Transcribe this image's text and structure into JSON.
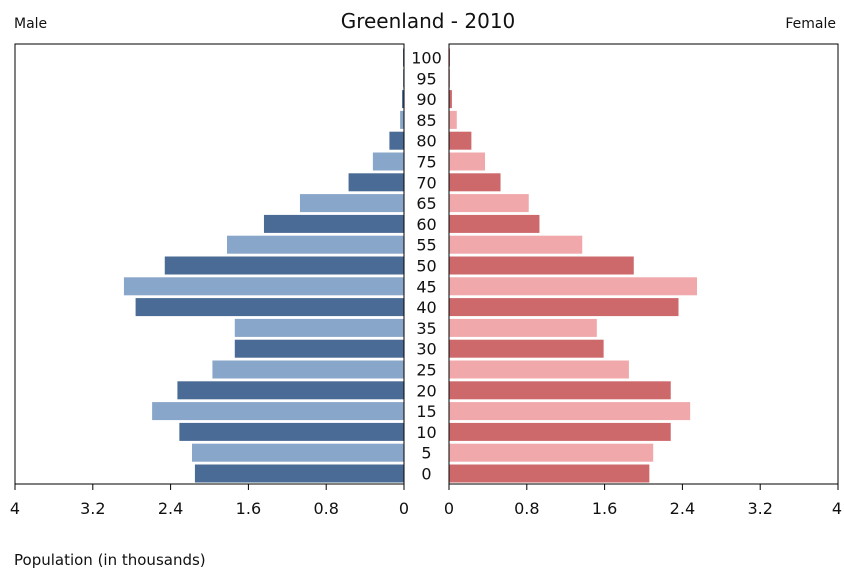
{
  "chart_data": {
    "type": "bar",
    "title": "Greenland - 2010",
    "left_label": "Male",
    "right_label": "Female",
    "xlabel": "Population (in thousands)",
    "xlim": [
      0,
      4
    ],
    "x_ticks_left": [
      "4",
      "3.2",
      "2.4",
      "1.6",
      "0.8",
      "0"
    ],
    "x_ticks_right": [
      "0",
      "0.8",
      "1.6",
      "2.4",
      "3.2",
      "4"
    ],
    "categories": [
      "0",
      "5",
      "10",
      "15",
      "20",
      "25",
      "30",
      "35",
      "40",
      "45",
      "50",
      "55",
      "60",
      "65",
      "70",
      "75",
      "80",
      "85",
      "90",
      "95",
      "100"
    ],
    "series": [
      {
        "name": "Male",
        "values": [
          2.15,
          2.18,
          2.31,
          2.59,
          2.33,
          1.97,
          1.74,
          1.74,
          2.76,
          2.88,
          2.46,
          1.82,
          1.44,
          1.07,
          0.57,
          0.32,
          0.15,
          0.04,
          0.02,
          0.01,
          0.01
        ]
      },
      {
        "name": "Female",
        "values": [
          2.06,
          2.1,
          2.28,
          2.48,
          2.28,
          1.85,
          1.59,
          1.52,
          2.36,
          2.55,
          1.9,
          1.37,
          0.93,
          0.82,
          0.53,
          0.37,
          0.23,
          0.08,
          0.03,
          0.01,
          0.01
        ]
      }
    ],
    "colors": {
      "male_dark": "#4a6b96",
      "male_light": "#88a6c9",
      "female_dark": "#cd686b",
      "female_light": "#f0a8aa"
    },
    "grid": false
  }
}
